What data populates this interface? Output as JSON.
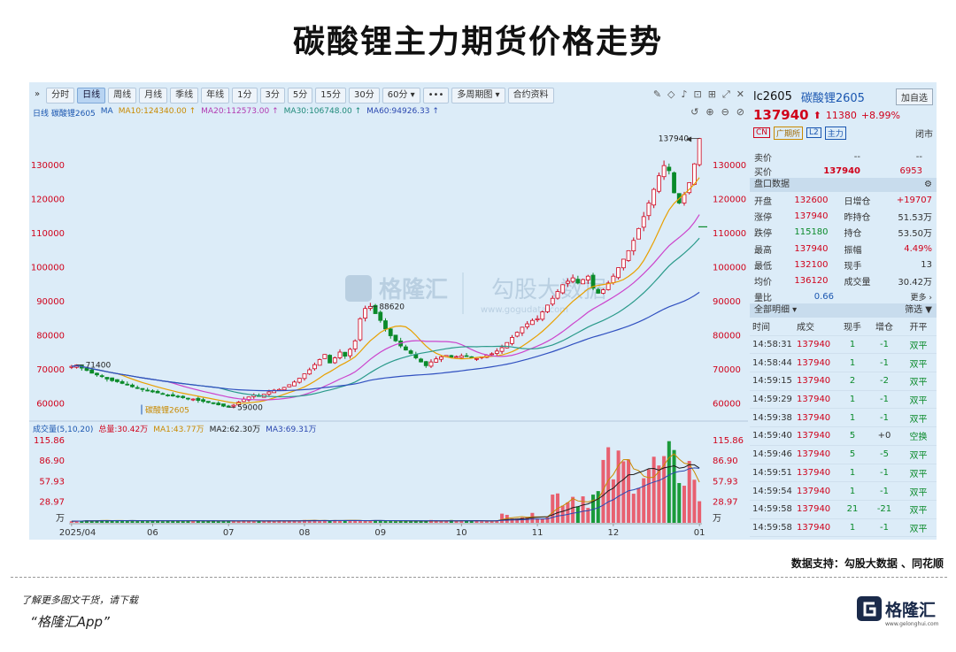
{
  "page_title": "碳酸锂主力期货价格走势",
  "toolbar": {
    "nav_label": "»",
    "periods": [
      "分时",
      "日线",
      "周线",
      "月线",
      "季线",
      "年线",
      "1分",
      "3分",
      "5分",
      "15分",
      "30分",
      "60分 ▾",
      "•••",
      "多周期图 ▾",
      "合约资料"
    ],
    "active_period": "日线",
    "right_icons": [
      "✎",
      "◇",
      "♪",
      "⊡",
      "⊞",
      "⤢",
      "✕"
    ],
    "right_icons2": [
      "↺",
      "⊕",
      "⊖",
      "⊘"
    ]
  },
  "ma_legend": {
    "prefix": "日线  碳酸锂2605",
    "ma_label": "MA",
    "ma10": "MA10:124340.00 ↑",
    "ma20": "MA20:112573.00 ↑",
    "ma30": "MA30:106748.00 ↑",
    "ma60": "MA60:94926.33 ↑",
    "colors": {
      "ma10": "#e8a000",
      "ma20": "#cc44cc",
      "ma30": "#2a9a8a",
      "ma60": "#3050c0"
    }
  },
  "vol_legend": {
    "prefix": "成交量(5,10,20)",
    "total": "总量:30.42万",
    "ma1": "MA1:43.77万",
    "ma2": "MA2:62.30万",
    "ma3": "MA3:69.31万"
  },
  "watermark": {
    "brand": "格隆汇",
    "sub": "勾股大数据",
    "url": "www.gogudata.com"
  },
  "chart_data": {
    "type": "candlestick",
    "symbol": "碳酸锂2605",
    "price_axis_left": [
      "130000",
      "120000",
      "110000",
      "100000",
      "90000",
      "80000",
      "70000",
      "60000"
    ],
    "price_axis_right": [
      "130000",
      "120000",
      "110000",
      "100000",
      "90000",
      "80000",
      "70000",
      "60000"
    ],
    "y_range": [
      57000,
      142000
    ],
    "annotations": [
      {
        "label": "137940",
        "value": 137940
      },
      {
        "label": "88620",
        "value": 88620
      },
      {
        "label": "71400",
        "value": 71400
      },
      {
        "label": "59000",
        "value": 59000
      }
    ],
    "x_labels": [
      "2025/04",
      "06",
      "07",
      "08",
      "09",
      "10",
      "11",
      "12",
      "01"
    ],
    "close_series": [
      71000,
      71400,
      70500,
      69800,
      69000,
      68500,
      68000,
      67300,
      66800,
      66500,
      66000,
      65700,
      65000,
      64600,
      64200,
      64000,
      63500,
      63200,
      62900,
      62600,
      62300,
      62000,
      61800,
      61600,
      61400,
      61000,
      60700,
      60400,
      60100,
      59700,
      59300,
      59000,
      59600,
      60500,
      61400,
      62000,
      62600,
      62200,
      62800,
      63500,
      64000,
      64200,
      64800,
      65600,
      66400,
      67500,
      68800,
      70000,
      71500,
      73000,
      74500,
      72000,
      73500,
      75200,
      74000,
      76000,
      78500,
      85000,
      88000,
      88620,
      86500,
      84500,
      82000,
      80000,
      78500,
      77000,
      75800,
      74800,
      73500,
      72300,
      71200,
      72300,
      73200,
      73800,
      74200,
      73700,
      73900,
      74100,
      73900,
      73600,
      73300,
      73800,
      74300,
      74700,
      75500,
      76500,
      78000,
      79500,
      81000,
      82500,
      83500,
      84500,
      85000,
      87000,
      89000,
      91000,
      93000,
      95000,
      96000,
      97000,
      95500,
      96500,
      97500,
      94000,
      92500,
      93500,
      95500,
      97500,
      100000,
      102500,
      105000,
      108000,
      111500,
      115000,
      119000,
      123000,
      127000,
      130000,
      128500,
      122000,
      119000,
      121500,
      125000,
      130500,
      137940
    ],
    "volume_axis": [
      "115.86",
      "86.90",
      "57.93",
      "28.97",
      "万"
    ],
    "volume_max": 115.86
  },
  "quote": {
    "code": "lc2605",
    "name": "碳酸锂2605",
    "add_button": "加自选",
    "price": "137940",
    "arrow": "⬆",
    "change": "11380",
    "pct": "+8.99%",
    "tags": [
      "CN",
      "广期所",
      "L2",
      "主力"
    ],
    "status": "闭市",
    "sell_label": "卖价",
    "sell_price": "--",
    "sell_vol": "--",
    "buy_label": "买价",
    "buy_price": "137940",
    "buy_vol": "6953",
    "panel_title": "盘口数据",
    "rows": [
      {
        "l1": "开盘",
        "v1": "132600",
        "l2": "日增仓",
        "v2": "+19707"
      },
      {
        "l1": "涨停",
        "v1": "137940",
        "l2": "昨持仓",
        "v2": "51.53万"
      },
      {
        "l1": "跌停",
        "v1": "115180",
        "l2": "持仓",
        "v2": "53.50万"
      },
      {
        "l1": "最高",
        "v1": "137940",
        "l2": "振幅",
        "v2": "4.49%"
      },
      {
        "l1": "最低",
        "v1": "132100",
        "l2": "现手",
        "v2": "13"
      },
      {
        "l1": "均价",
        "v1": "136120",
        "l2": "成交量",
        "v2": "30.42万"
      }
    ],
    "ratio_label": "量比",
    "ratio_value": "0.66",
    "more": "更多 ›",
    "trades_title": "全部明细 ▾",
    "filter": "筛选",
    "trade_headers": [
      "时间",
      "成交",
      "现手",
      "增仓",
      "开平"
    ],
    "trades": [
      [
        "14:58:31",
        "137940",
        "1",
        "-1",
        "双平"
      ],
      [
        "14:58:44",
        "137940",
        "1",
        "-1",
        "双平"
      ],
      [
        "14:59:15",
        "137940",
        "2",
        "-2",
        "双平"
      ],
      [
        "14:59:29",
        "137940",
        "1",
        "-1",
        "双平"
      ],
      [
        "14:59:38",
        "137940",
        "1",
        "-1",
        "双平"
      ],
      [
        "14:59:40",
        "137940",
        "5",
        "+0",
        "空换"
      ],
      [
        "14:59:46",
        "137940",
        "5",
        "-5",
        "双平"
      ],
      [
        "14:59:51",
        "137940",
        "1",
        "-1",
        "双平"
      ],
      [
        "14:59:54",
        "137940",
        "1",
        "-1",
        "双平"
      ],
      [
        "14:59:58",
        "137940",
        "21",
        "-21",
        "双平"
      ],
      [
        "14:59:58",
        "137940",
        "1",
        "-1",
        "双平"
      ]
    ]
  },
  "footer": {
    "data_source": "数据支持：勾股大数据 、同花顺",
    "line1": "了解更多图文干货，请下载",
    "line2": "“格隆汇App”",
    "logo_name": "格隆汇",
    "logo_url": "www.gelonghui.com"
  }
}
